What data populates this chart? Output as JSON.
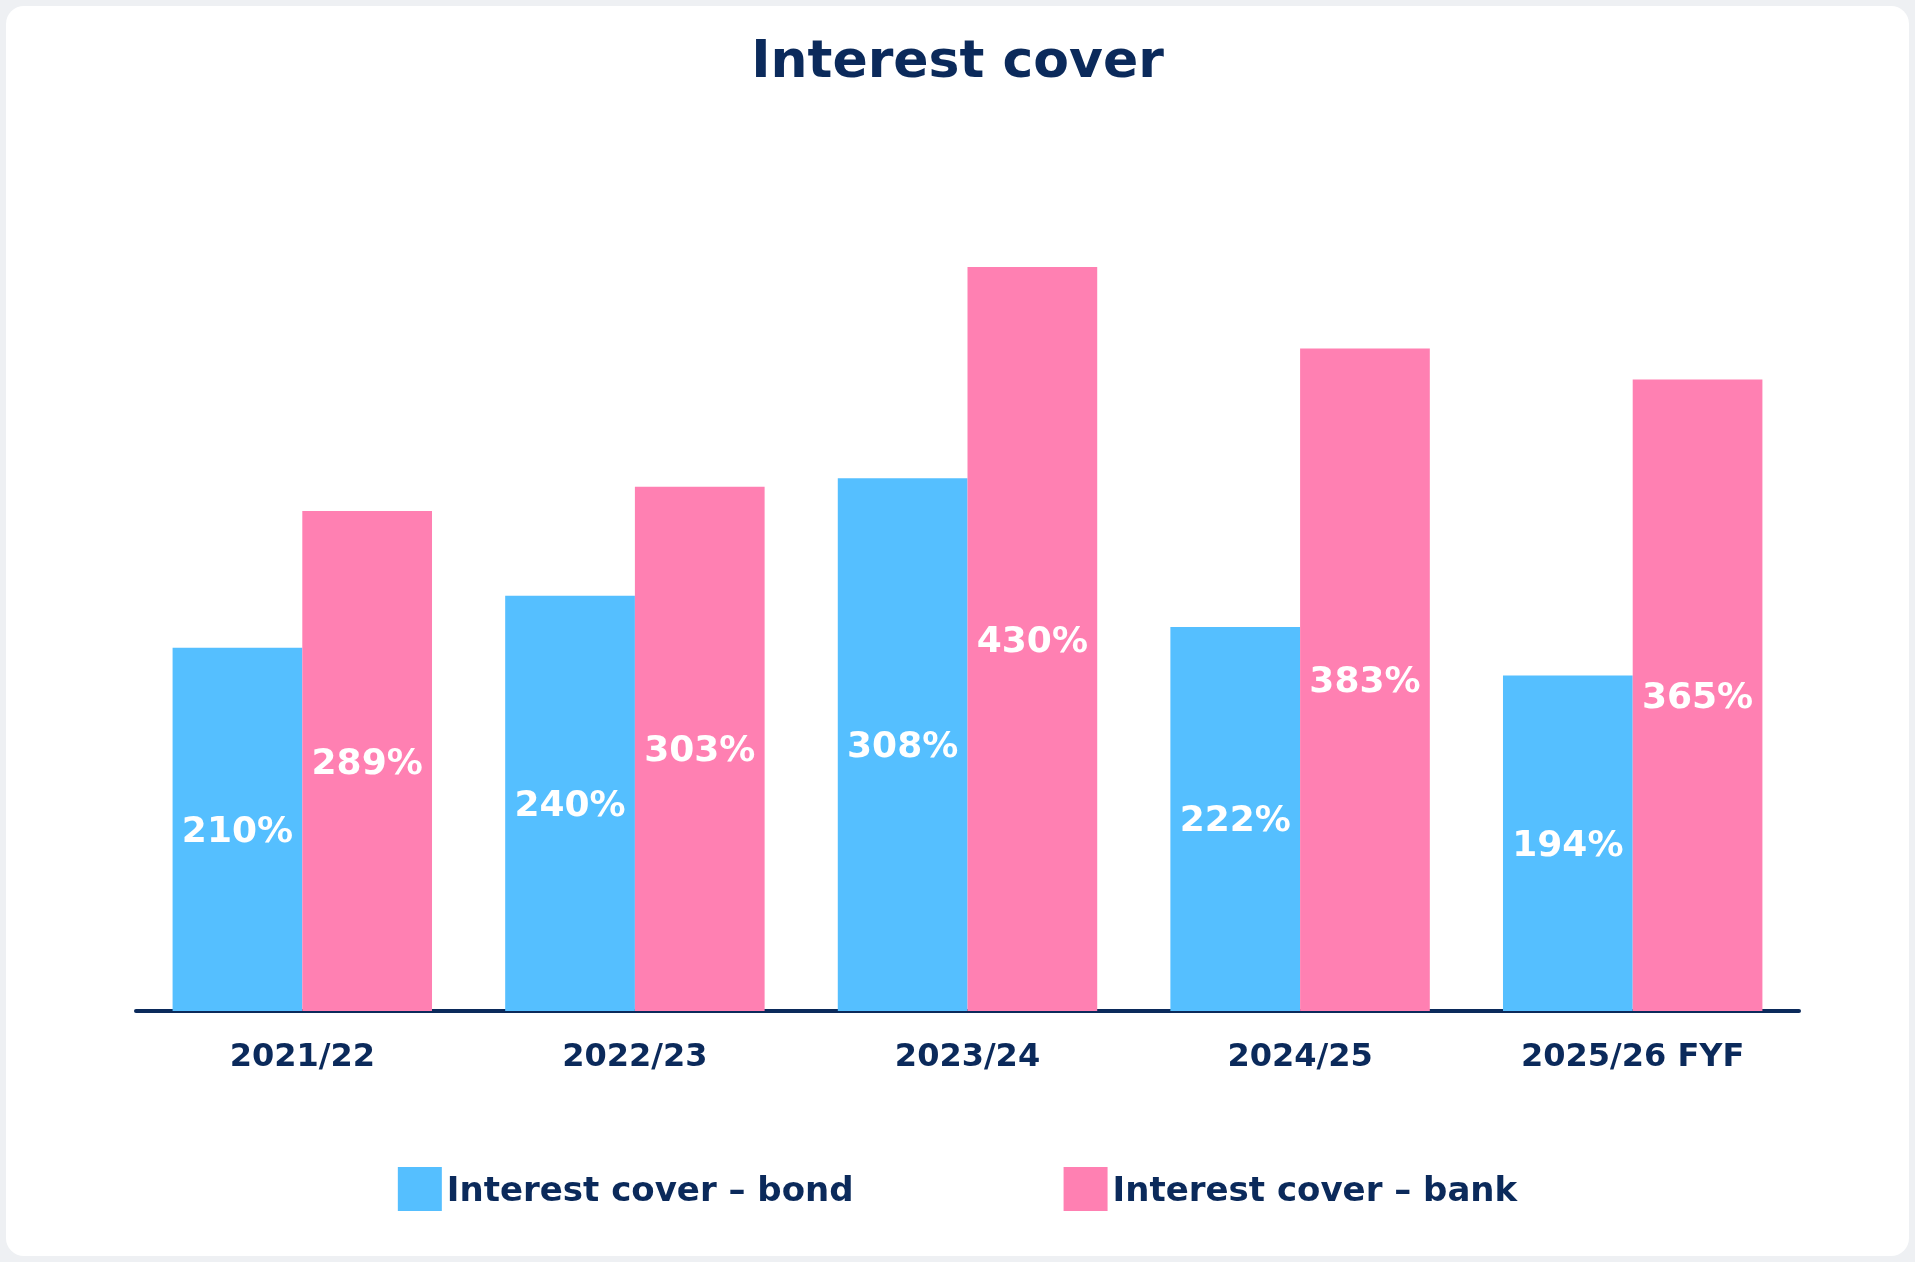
{
  "chart_data": {
    "type": "bar",
    "title": "Interest cover",
    "categories": [
      "2021/22",
      "2022/23",
      "2023/24",
      "2024/25",
      "2025/26 FYF"
    ],
    "series": [
      {
        "name": "Interest cover – bond",
        "color": "#55bfff",
        "values": [
          210,
          240,
          308,
          222,
          194
        ],
        "value_labels": [
          "210%",
          "240%",
          "308%",
          "222%",
          "194%"
        ]
      },
      {
        "name": "Interest cover – bank",
        "color": "#ff80b2",
        "values": [
          289,
          303,
          430,
          383,
          365
        ],
        "value_labels": [
          "289%",
          "303%",
          "430%",
          "383%",
          "365%"
        ]
      }
    ],
    "legend": "bottom",
    "grid": false
  }
}
